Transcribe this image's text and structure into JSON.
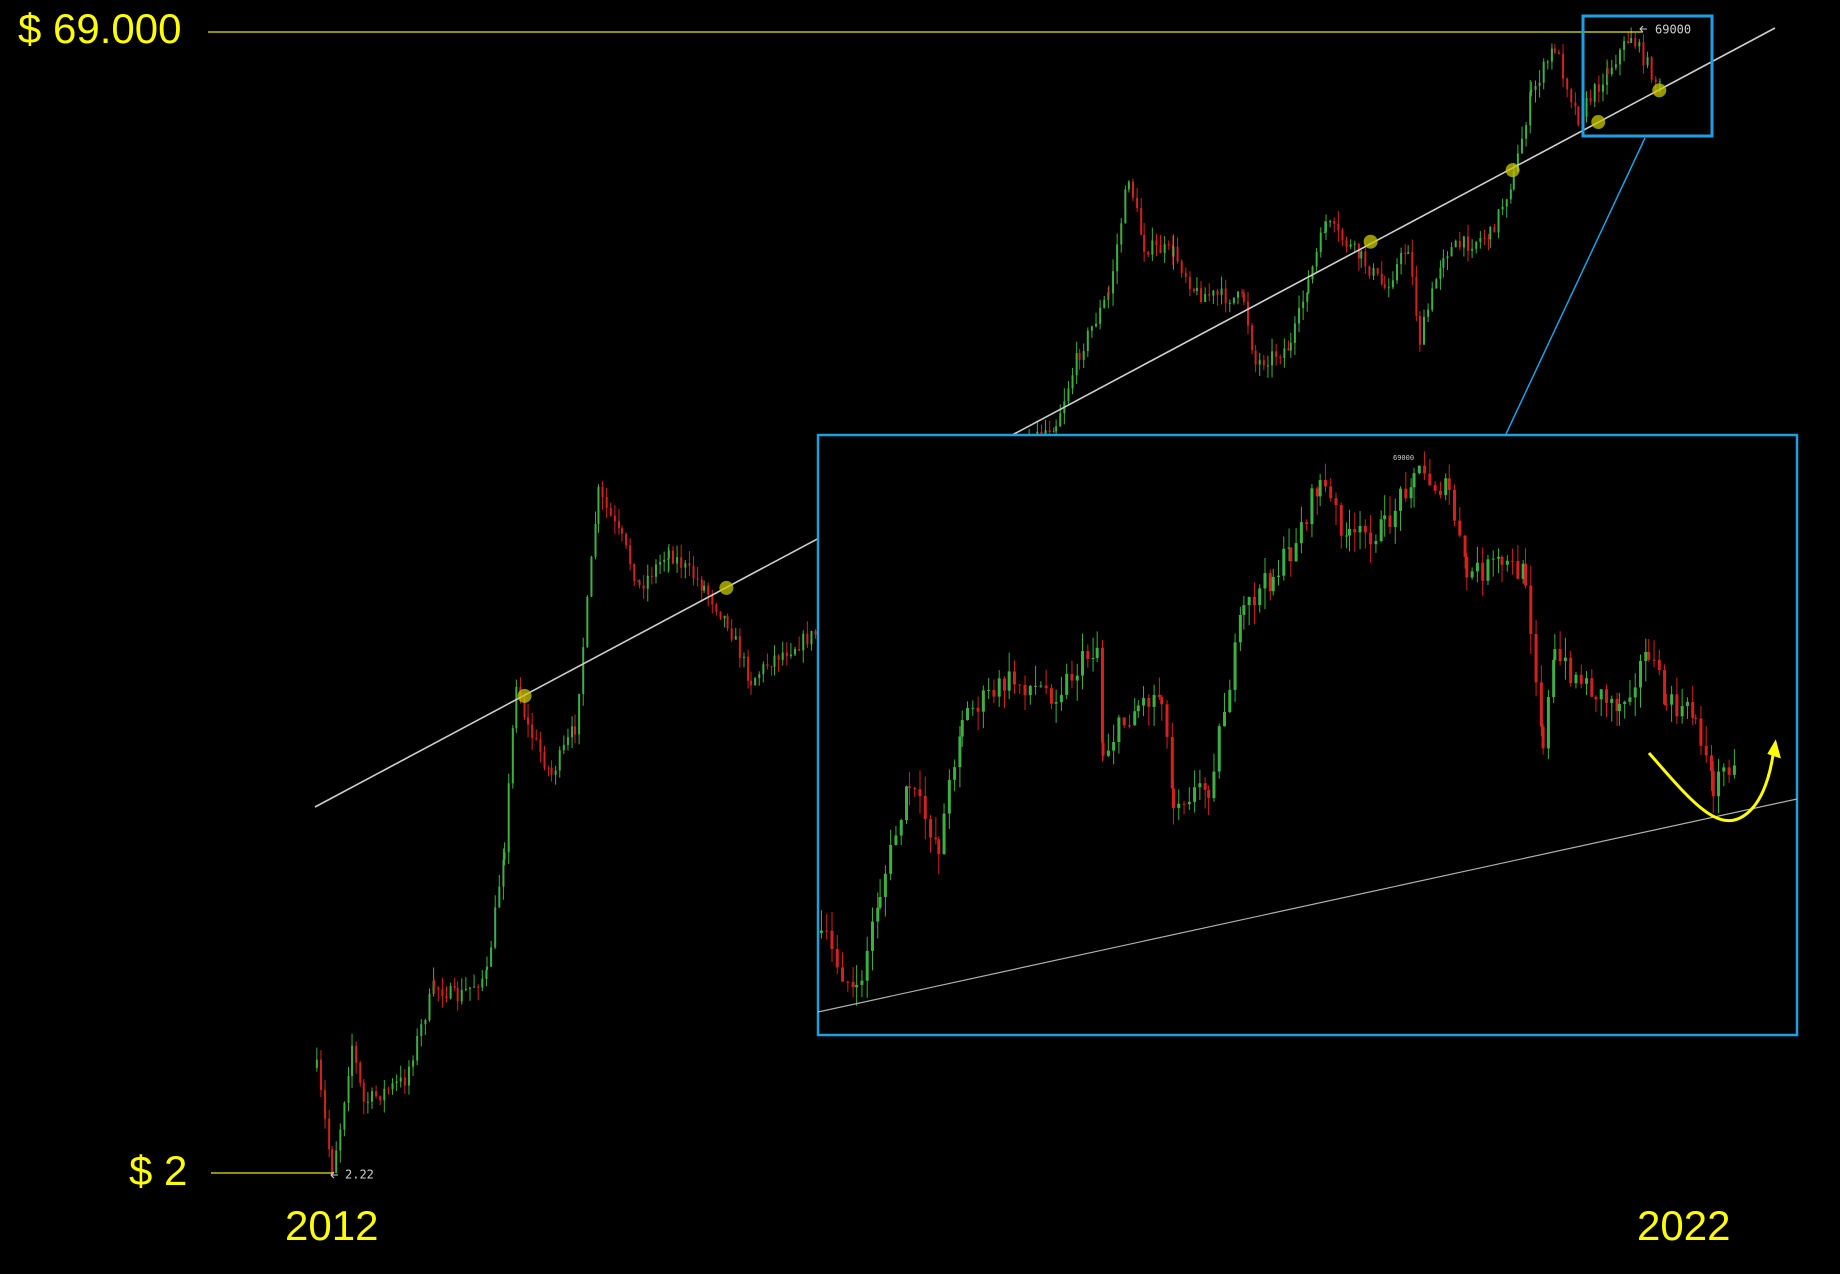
{
  "labels": {
    "top_price": "$ 69.000",
    "bottom_price": "$ 2",
    "start_year": "2012",
    "end_year": "2022",
    "high_marker": "69000",
    "low_marker": "2.22",
    "inset_high_marker": "69000"
  }
}
